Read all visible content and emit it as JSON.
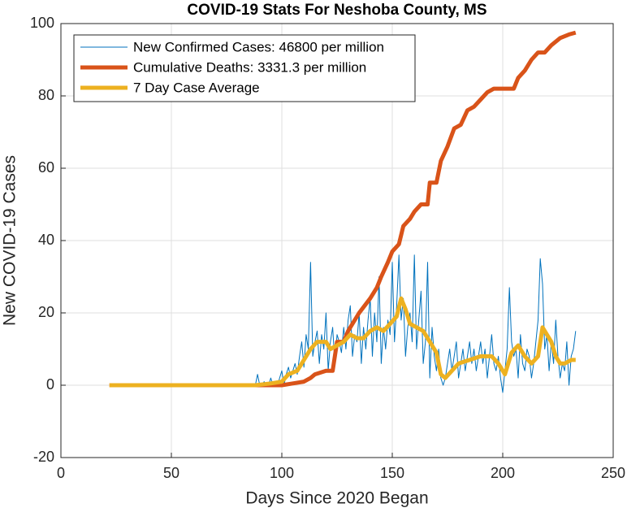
{
  "chart_data": {
    "type": "line",
    "title": "COVID-19 Stats For Neshoba County, MS",
    "xlabel": "Days Since 2020 Began",
    "ylabel": "New COVID-19 Cases",
    "xlim": [
      0,
      250
    ],
    "xticks": [
      0,
      50,
      100,
      150,
      200,
      250
    ],
    "ylim": [
      -20,
      100
    ],
    "yticks": [
      -20,
      0,
      20,
      40,
      60,
      80,
      100
    ],
    "grid": true,
    "legend": "top-left",
    "series": [
      {
        "name": "New Confirmed Cases: 46800 per million",
        "color": "#0072BD",
        "x": [
          88,
          89,
          90,
          91,
          92,
          93,
          94,
          95,
          96,
          97,
          98,
          99,
          100,
          101,
          102,
          103,
          104,
          105,
          106,
          107,
          108,
          109,
          110,
          111,
          112,
          113,
          114,
          115,
          116,
          117,
          118,
          119,
          120,
          121,
          122,
          123,
          124,
          125,
          126,
          127,
          128,
          129,
          130,
          131,
          132,
          133,
          134,
          135,
          136,
          137,
          138,
          139,
          140,
          141,
          142,
          143,
          144,
          145,
          146,
          147,
          148,
          149,
          150,
          151,
          152,
          153,
          154,
          155,
          156,
          157,
          158,
          159,
          160,
          161,
          162,
          163,
          164,
          165,
          166,
          167,
          168,
          169,
          170,
          171,
          172,
          173,
          174,
          175,
          176,
          177,
          178,
          179,
          180,
          181,
          182,
          183,
          184,
          185,
          186,
          187,
          188,
          189,
          190,
          191,
          192,
          193,
          194,
          195,
          196,
          197,
          198,
          199,
          200,
          201,
          202,
          203,
          204,
          205,
          206,
          207,
          208,
          209,
          210,
          211,
          212,
          213,
          214,
          215,
          216,
          217,
          218,
          219,
          220,
          221,
          222,
          223,
          224,
          225,
          226,
          227,
          228,
          229,
          230,
          231,
          232,
          233
        ],
        "values": [
          0,
          3,
          0,
          0,
          1,
          0,
          0,
          2,
          0,
          1,
          0,
          2,
          4,
          0,
          3,
          5,
          2,
          4,
          6,
          3,
          8,
          12,
          5,
          14,
          10,
          34,
          8,
          12,
          15,
          6,
          14,
          10,
          20,
          4,
          12,
          16,
          6,
          14,
          12,
          9,
          16,
          10,
          18,
          22,
          8,
          14,
          12,
          20,
          6,
          16,
          10,
          18,
          24,
          8,
          20,
          12,
          30,
          6,
          16,
          10,
          18,
          14,
          34,
          12,
          22,
          36,
          18,
          24,
          8,
          16,
          20,
          12,
          36,
          10,
          18,
          26,
          6,
          12,
          34,
          2,
          16,
          8,
          4,
          10,
          2,
          0,
          2,
          6,
          10,
          4,
          8,
          12,
          2,
          6,
          10,
          4,
          8,
          12,
          6,
          10,
          4,
          8,
          12,
          6,
          10,
          2,
          8,
          14,
          6,
          4,
          8,
          2,
          -2,
          4,
          10,
          27,
          12,
          8,
          10,
          2,
          14,
          6,
          4,
          10,
          8,
          2,
          6,
          12,
          18,
          35,
          28,
          10,
          14,
          4,
          12,
          6,
          18,
          8,
          2,
          6,
          4,
          12,
          0,
          8,
          10,
          15
        ]
      },
      {
        "name": "Cumulative Deaths: 3331.3 per million",
        "color": "#D95319",
        "x": [
          22,
          100,
          105,
          110,
          113,
          115,
          120,
          123,
          124,
          125,
          128,
          130,
          135,
          140,
          143,
          145,
          148,
          150,
          153,
          155,
          158,
          160,
          163,
          166,
          167,
          170,
          172,
          175,
          178,
          181,
          184,
          187,
          190,
          193,
          196,
          200,
          205,
          207,
          210,
          213,
          216,
          219,
          222,
          226,
          230,
          233
        ],
        "values": [
          0,
          0,
          0.5,
          1,
          2,
          3,
          4,
          4,
          8,
          12,
          12,
          15,
          20,
          24,
          27,
          30,
          34,
          37,
          39,
          44,
          46,
          48,
          50,
          50,
          56,
          56,
          62,
          66,
          71,
          72,
          76,
          77,
          79,
          81,
          82,
          82,
          82,
          85,
          87,
          90,
          92,
          92,
          94,
          96,
          97,
          97.5
        ]
      },
      {
        "name": "7 Day Case Average",
        "color": "#EDB120",
        "x": [
          22,
          88,
          95,
          100,
          103,
          107,
          110,
          113,
          116,
          120,
          122,
          125,
          128,
          131,
          134,
          137,
          140,
          143,
          146,
          149,
          152,
          154,
          156,
          158,
          161,
          164,
          167,
          170,
          172,
          174,
          177,
          180,
          185,
          190,
          195,
          198,
          201,
          204,
          207,
          210,
          213,
          216,
          218,
          220,
          222,
          224,
          226,
          228,
          231,
          233
        ],
        "values": [
          0,
          0,
          0.5,
          1,
          3,
          4,
          7,
          10,
          12,
          12,
          10,
          11,
          12,
          14,
          13,
          13,
          15,
          16,
          15,
          17,
          19,
          24,
          21,
          17,
          16,
          15,
          12,
          9,
          3,
          2,
          4,
          6,
          7,
          8,
          8,
          6,
          3,
          9,
          11,
          8,
          6,
          8,
          16,
          14,
          12,
          8,
          6,
          6,
          7,
          7
        ]
      }
    ]
  }
}
